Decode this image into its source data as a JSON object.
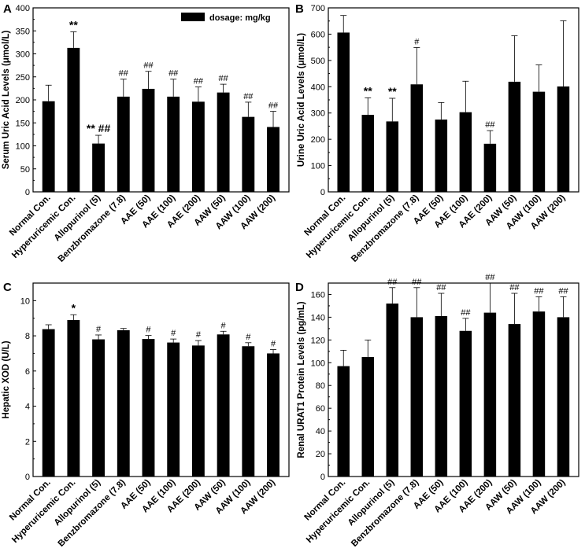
{
  "chart_data": [
    {
      "panel": "A",
      "type": "bar",
      "ylabel": "Serum Uric Acid Levels (μmol/L)",
      "ylim": [
        0,
        400
      ],
      "yticks": [
        0,
        50,
        100,
        150,
        200,
        250,
        300,
        350,
        400
      ],
      "legend": "dosage: mg/kg",
      "categories": [
        "Normal Con.",
        "Hyperuricemic Con.",
        "Allopurinol (5)",
        "Benzbromazone (7.8)",
        "AAE (50)",
        "AAE (100)",
        "AAE (200)",
        "AAW (50)",
        "AAW (100)",
        "AAW (200)"
      ],
      "values": [
        197,
        313,
        105,
        207,
        224,
        207,
        196,
        216,
        163,
        141
      ],
      "errors": [
        35,
        35,
        18,
        38,
        38,
        38,
        32,
        18,
        32,
        34
      ],
      "marks": [
        "",
        "**",
        "** ##",
        "##",
        "##",
        "##",
        "##",
        "##",
        "##",
        "##"
      ]
    },
    {
      "panel": "B",
      "type": "bar",
      "ylabel": "Urine Uric Acid Levels (μmol/L)",
      "ylim": [
        0,
        700
      ],
      "yticks": [
        0,
        100,
        200,
        300,
        400,
        500,
        600,
        700
      ],
      "categories": [
        "Normal Con.",
        "Hyperuricemic Con.",
        "Allopurinol (5)",
        "Benzbromazone (7.8)",
        "AAE (50)",
        "AAE (100)",
        "AAE (200)",
        "AAW (50)",
        "AAW (100)",
        "AAW (200)"
      ],
      "values": [
        606,
        293,
        268,
        409,
        275,
        303,
        183,
        419,
        381,
        401
      ],
      "errors": [
        65,
        65,
        88,
        140,
        65,
        118,
        50,
        175,
        102,
        250
      ],
      "marks": [
        "",
        "**",
        "**",
        "#",
        "",
        "",
        "##",
        "",
        "",
        ""
      ]
    },
    {
      "panel": "C",
      "type": "bar",
      "ylabel": "Hepatic XOD (U/L)",
      "ylim": [
        0,
        11
      ],
      "yticks": [
        0,
        2,
        4,
        6,
        8,
        10
      ],
      "categories": [
        "Normal Con.",
        "Hyperuricemic Con.",
        "Allopurinol (5)",
        "Benzbromazone (7.8)",
        "AAE (50)",
        "AAE (100)",
        "AAE (200)",
        "AAW (50)",
        "AAW (100)",
        "AAW (200)"
      ],
      "values": [
        8.38,
        8.9,
        7.8,
        8.32,
        7.82,
        7.62,
        7.45,
        8.08,
        7.41,
        7.0
      ],
      "errors": [
        0.25,
        0.3,
        0.25,
        0.1,
        0.2,
        0.2,
        0.28,
        0.18,
        0.2,
        0.22
      ],
      "marks": [
        "",
        "*",
        "#",
        "",
        "#",
        "#",
        "#",
        "#",
        "#",
        "#"
      ]
    },
    {
      "panel": "D",
      "type": "bar",
      "ylabel": "Renal URAT1 Protein Levels (pg/mL)",
      "ylim": [
        0,
        170
      ],
      "yticks": [
        0,
        20,
        40,
        60,
        80,
        100,
        120,
        140,
        160
      ],
      "categories": [
        "Normal Con.",
        "Hyperuricemic Con.",
        "Allopurinol (5)",
        "Benzbromazone (7.8)",
        "AAE (50)",
        "AAE (100)",
        "AAE (200)",
        "AAW (50)",
        "AAW (100)",
        "AAW (200)"
      ],
      "values": [
        97,
        105,
        152,
        140,
        141,
        128,
        144,
        134,
        145,
        140
      ],
      "errors": [
        14,
        15,
        14,
        26,
        20,
        11,
        26,
        27,
        13,
        18
      ],
      "marks": [
        "",
        "",
        "##",
        "##",
        "##",
        "##",
        "##",
        "##",
        "##",
        "##"
      ]
    }
  ]
}
